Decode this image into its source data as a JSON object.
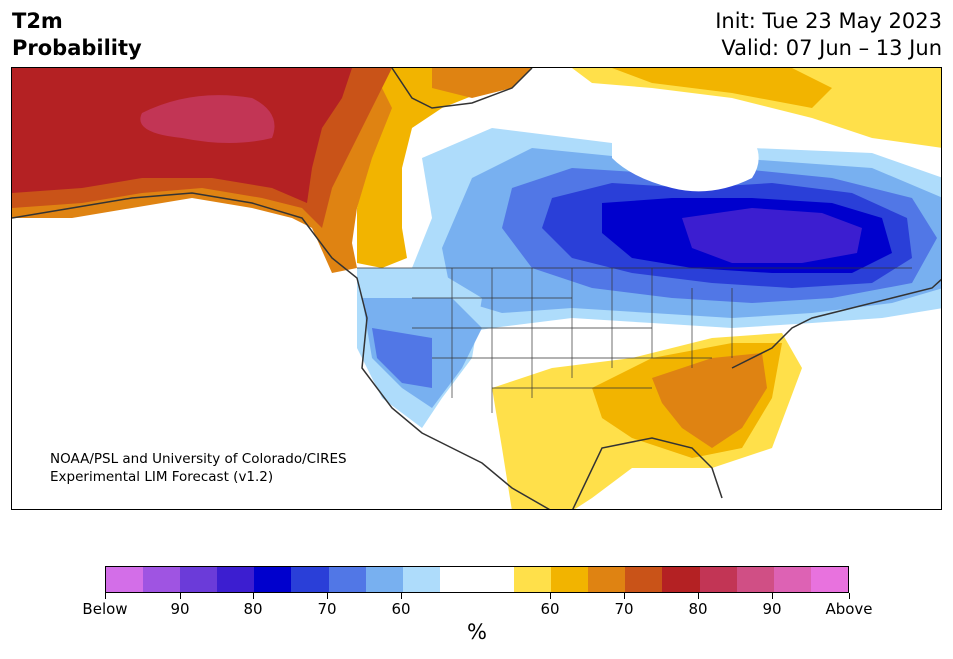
{
  "header": {
    "variable": "T2m",
    "type": "Probability",
    "init": "Init: Tue 23 May 2023",
    "valid": "Valid: 07 Jun – 13 Jun"
  },
  "credit": {
    "line1": "NOAA/PSL and University of Colorado/CIRES",
    "line2": "Experimental LIM Forecast (v1.2)"
  },
  "colorbar": {
    "unit": "%",
    "colors": [
      "#d36ee8",
      "#9f54e2",
      "#6b3bd9",
      "#3c1ed0",
      "#0000cd",
      "#2a3fd8",
      "#5177e6",
      "#78b0f0",
      "#aedcfb",
      "#ffffff",
      "#ffffff",
      "#ffe04a",
      "#f2b400",
      "#df8312",
      "#c95318",
      "#b42123",
      "#c23555",
      "#d04f85",
      "#dd62b4",
      "#e872de"
    ],
    "tick_labels": [
      "Below",
      "90",
      "80",
      "70",
      "60",
      "60",
      "70",
      "80",
      "90",
      "Above"
    ]
  },
  "map": {
    "region": "North America",
    "colors": {
      "cold_extreme": "#3c1ed0",
      "cold_90": "#0000cd",
      "cold_80": "#2a3fd8",
      "cold_70": "#5177e6",
      "cold_60": "#78b0f0",
      "cold_50": "#aedcfb",
      "neutral": "#ffffff",
      "warm_50": "#ffe04a",
      "warm_60": "#f2b400",
      "warm_70": "#df8312",
      "warm_80": "#c95318",
      "warm_90": "#b42123",
      "warm_extreme": "#c23555"
    }
  }
}
